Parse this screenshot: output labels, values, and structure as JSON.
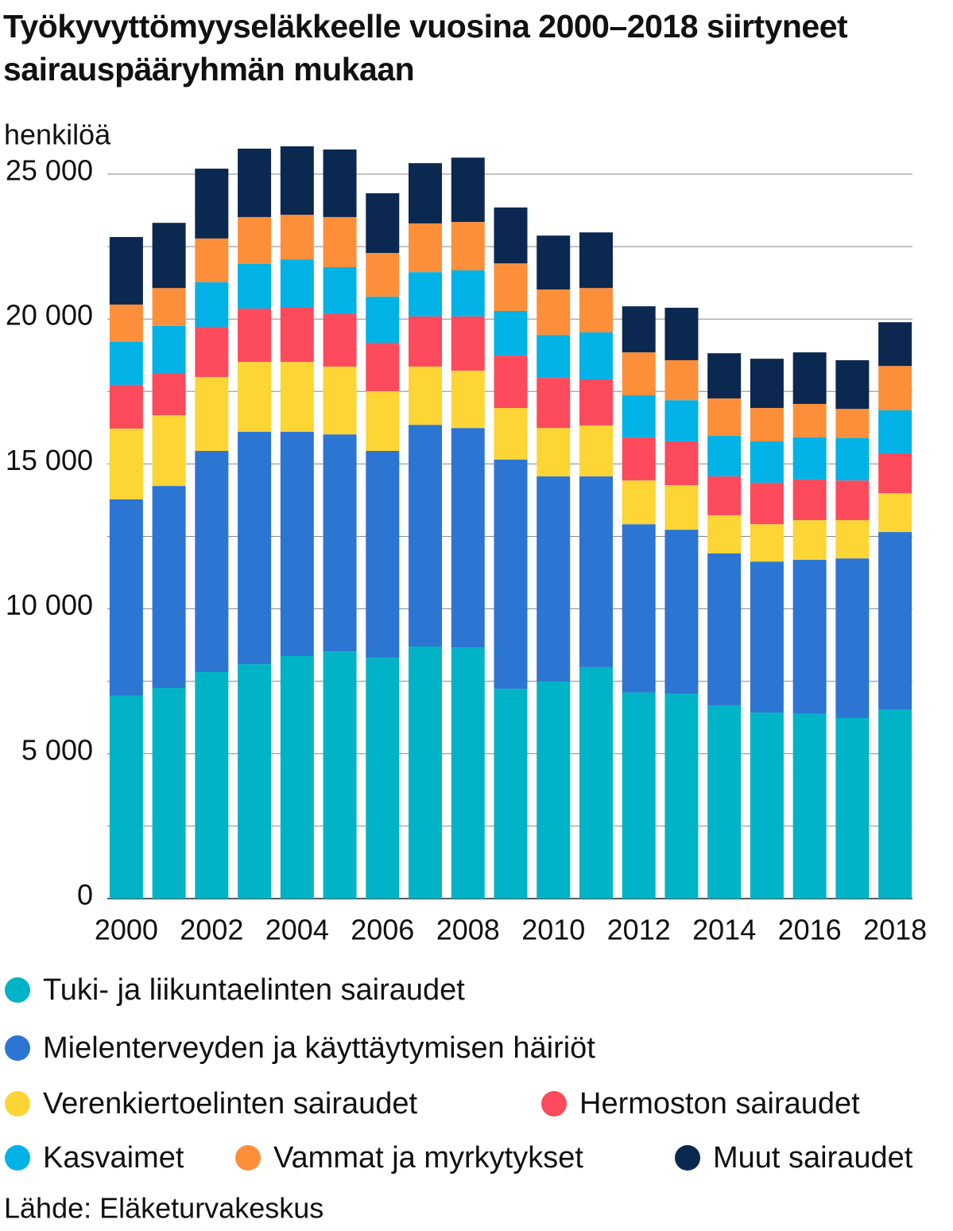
{
  "chart_data": {
    "type": "stacked-bar",
    "title": "Työkyvyttömyyseläkkeelle vuosina 2000–2018 siirtyneet sairauspääryhmän mukaan",
    "y_label": "henkilöä",
    "source": "Lähde: Eläketurvakeskus",
    "x": [
      2000,
      2001,
      2002,
      2003,
      2004,
      2005,
      2006,
      2007,
      2008,
      2009,
      2010,
      2011,
      2012,
      2013,
      2014,
      2015,
      2016,
      2017,
      2018
    ],
    "xlim": [
      1999.5,
      2018.5
    ],
    "xticks": [
      2000,
      2002,
      2004,
      2006,
      2008,
      2010,
      2012,
      2014,
      2016,
      2018
    ],
    "ylim": [
      0,
      26500
    ],
    "yticks": [
      0,
      {
        "value": 5000,
        "label": "5 000"
      },
      {
        "value": 10000,
        "label": "10 000"
      },
      {
        "value": 15000,
        "label": "15 000"
      },
      {
        "value": 20000,
        "label": "20 000"
      },
      {
        "value": 25000,
        "label": "25 000"
      }
    ],
    "minor_gridlines": [
      2500,
      7500,
      12500,
      17500,
      22500
    ],
    "grid": true,
    "series": [
      {
        "name": "Tuki- ja liikuntaelinten sairaudet",
        "color": "#00b3c6",
        "values": [
          7000,
          7270,
          7820,
          8090,
          8370,
          8530,
          8310,
          8700,
          8670,
          7240,
          7490,
          7990,
          7110,
          7080,
          6670,
          6420,
          6370,
          6230,
          6530
        ]
      },
      {
        "name": "Mielenterveyden ja käyttäytymisen häiriöt",
        "color": "#2d75d2",
        "values": [
          6780,
          6970,
          7630,
          8020,
          7740,
          7490,
          7140,
          7650,
          7570,
          7910,
          7080,
          6580,
          5810,
          5650,
          5240,
          5210,
          5320,
          5510,
          6120
        ]
      },
      {
        "name": "Verenkiertoelinten sairaudet",
        "color": "#fdd535",
        "values": [
          2440,
          2440,
          2550,
          2410,
          2410,
          2340,
          2060,
          2010,
          1980,
          1780,
          1670,
          1760,
          1510,
          1540,
          1320,
          1290,
          1370,
          1320,
          1340
        ]
      },
      {
        "name": "Hermoston sairaudet",
        "color": "#fd4a5c",
        "values": [
          1510,
          1460,
          1730,
          1840,
          1870,
          1810,
          1670,
          1730,
          1870,
          1810,
          1730,
          1590,
          1490,
          1510,
          1340,
          1430,
          1400,
          1370,
          1380
        ]
      },
      {
        "name": "Kasvaimet",
        "color": "#00b2e6",
        "values": [
          1480,
          1620,
          1540,
          1540,
          1670,
          1620,
          1590,
          1530,
          1590,
          1540,
          1480,
          1620,
          1450,
          1420,
          1400,
          1430,
          1460,
          1460,
          1480
        ]
      },
      {
        "name": "Vammat ja myrkytykset",
        "color": "#fe8f3a",
        "values": [
          1290,
          1310,
          1510,
          1620,
          1540,
          1730,
          1510,
          1680,
          1670,
          1640,
          1570,
          1530,
          1480,
          1380,
          1290,
          1150,
          1150,
          1010,
          1530
        ]
      },
      {
        "name": "Muut sairaudet",
        "color": "#0b2850",
        "values": [
          2330,
          2250,
          2410,
          2360,
          2360,
          2330,
          2060,
          2080,
          2220,
          1930,
          1860,
          1920,
          1590,
          1810,
          1560,
          1700,
          1780,
          1680,
          1510
        ]
      }
    ]
  }
}
